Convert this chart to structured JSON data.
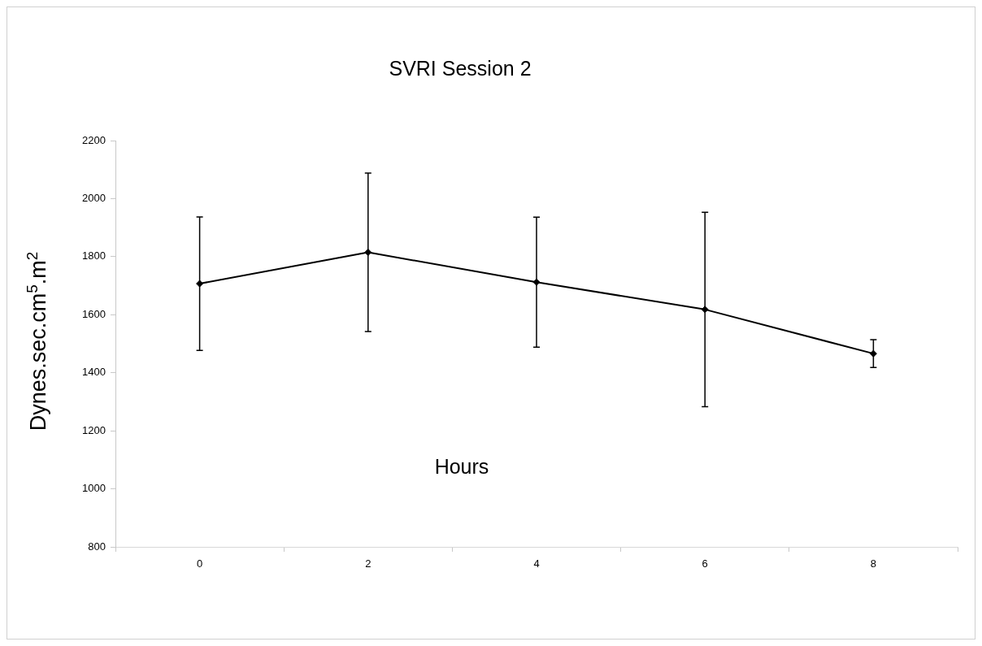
{
  "chart_data": {
    "type": "line",
    "title": "SVRI Session 2",
    "xlabel": "Hours",
    "ylabel": "Dynes.sec.cm$^{5}$.m$^{2}$",
    "categories": [
      "0",
      "2",
      "4",
      "6",
      "8"
    ],
    "series": [
      {
        "color": "#000000",
        "values": [
          1707,
          1815,
          1712,
          1618,
          1466
        ],
        "errors": [
          230,
          273,
          224,
          335,
          48
        ]
      }
    ],
    "ylim": [
      800,
      2200
    ],
    "yticks": [
      800,
      1000,
      1200,
      1400,
      1600,
      1800,
      2000,
      2200
    ],
    "grid": false,
    "legend": false,
    "marker": "diamond",
    "line_style": "solid"
  }
}
